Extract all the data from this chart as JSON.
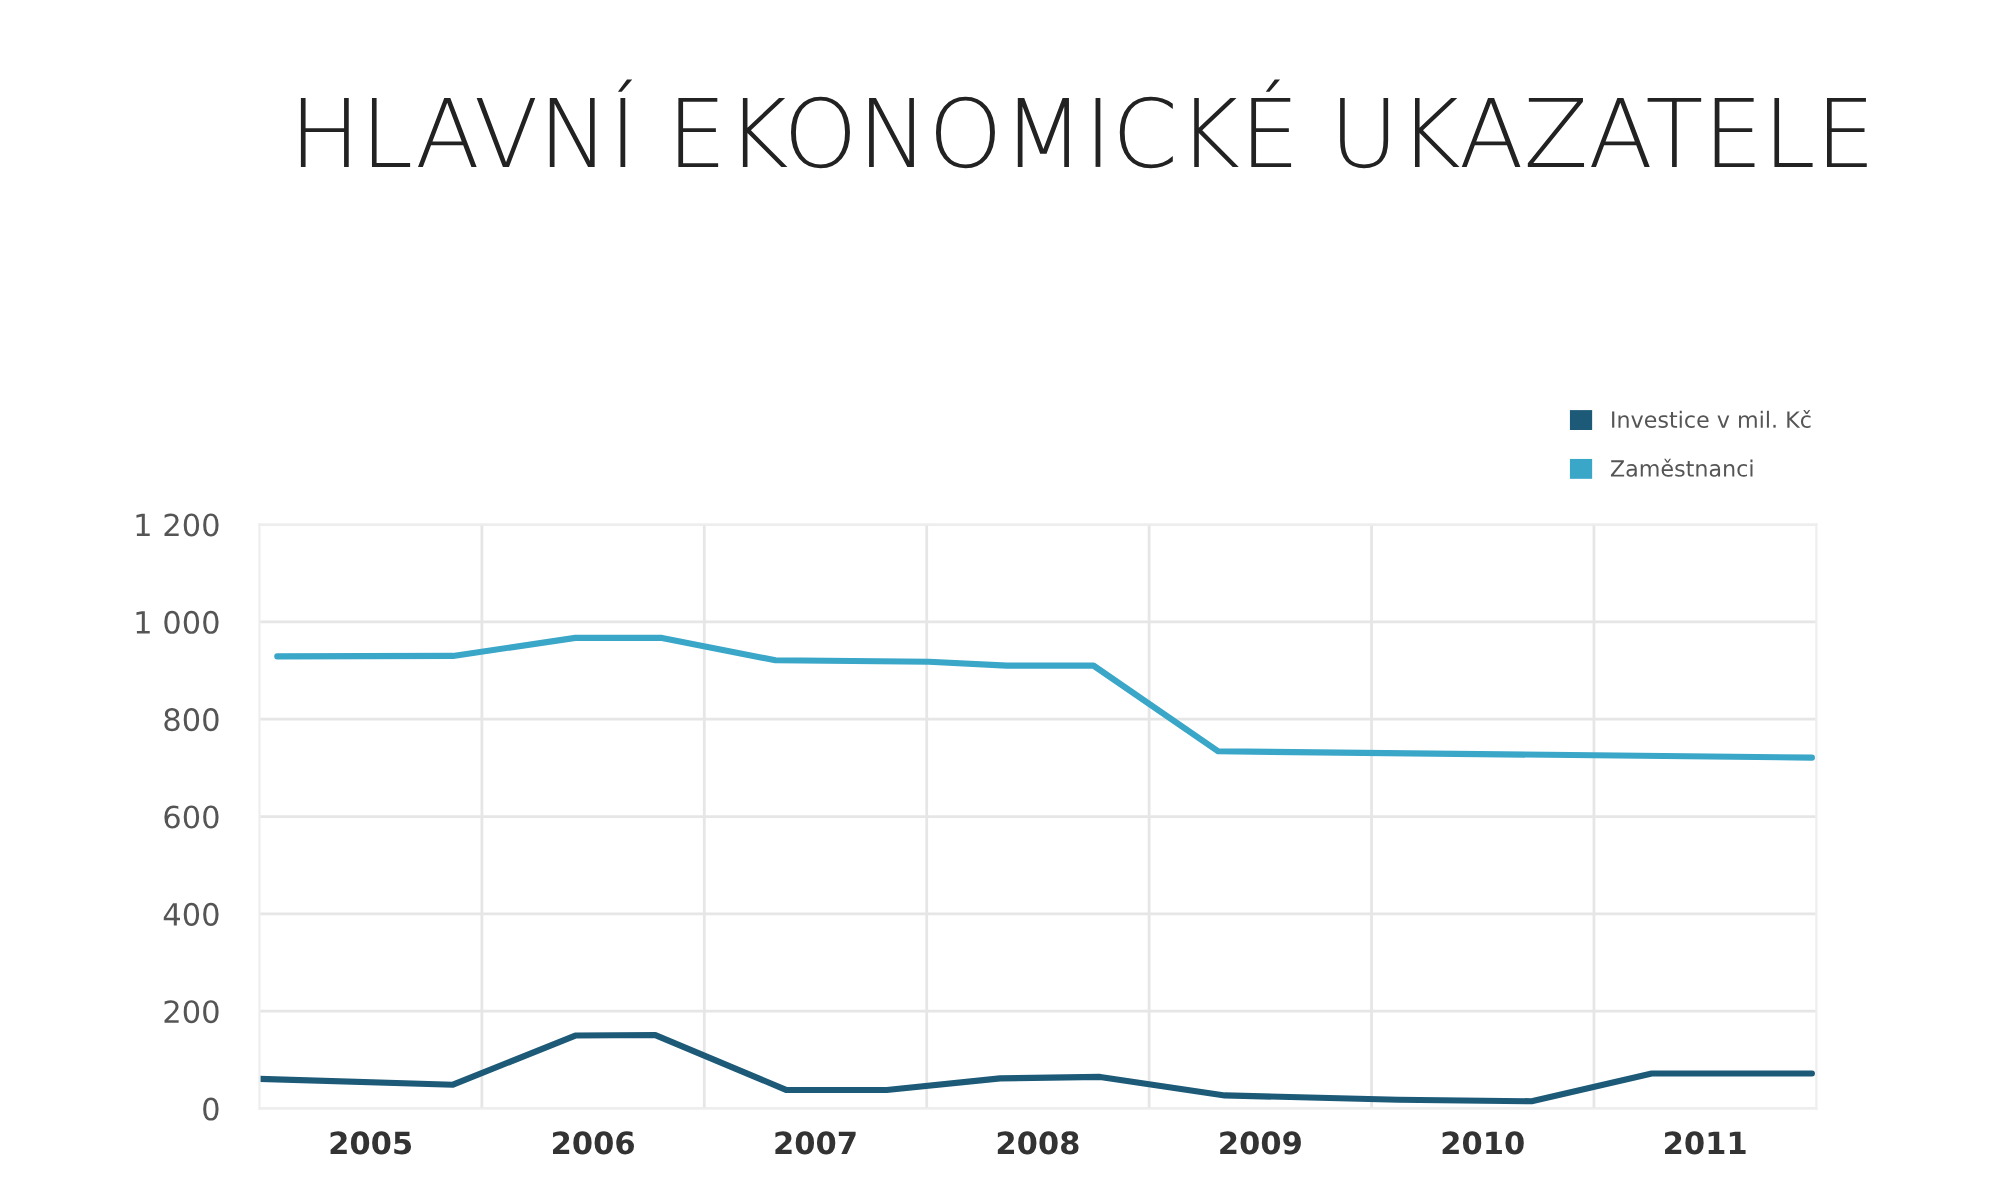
{
  "chart_data": {
    "type": "line",
    "title": "HLAVNÍ EKONOMICKÉ UKAZATELE",
    "xlim": [
      2004.5,
      2011.5
    ],
    "xticks": [
      2005,
      2006,
      2007,
      2008,
      2009,
      2010,
      2011
    ],
    "ylim": [
      0,
      1200
    ],
    "yticks": [
      0,
      200,
      400,
      600,
      800,
      {
        "value": 1000,
        "label": "1 000"
      },
      {
        "value": 1200,
        "label": "1 200"
      }
    ],
    "grid": true,
    "legend": "top right",
    "marker": "none",
    "line_style": "solid",
    "series": [
      {
        "name": "Investice v mil. Kč",
        "color": "#1d5a78",
        "x": [
          2004.5,
          2005.37,
          2005.92,
          2006.28,
          2006.87,
          2007.32,
          2007.83,
          2008.28,
          2008.84,
          2009.62,
          2010.22,
          2010.76,
          2011.48
        ],
        "values": [
          61,
          49,
          150,
          151,
          38,
          38,
          62,
          65,
          27,
          18,
          15,
          72,
          72
        ]
      },
      {
        "name": "Zaměstnanci",
        "color": "#3aa6c8",
        "x": [
          2004.58,
          2005.37,
          2005.92,
          2006.31,
          2006.82,
          2007.51,
          2007.86,
          2008.25,
          2008.81,
          2011.48
        ],
        "values": [
          929,
          930,
          967,
          967,
          921,
          918,
          910,
          910,
          734,
          721
        ]
      }
    ]
  }
}
